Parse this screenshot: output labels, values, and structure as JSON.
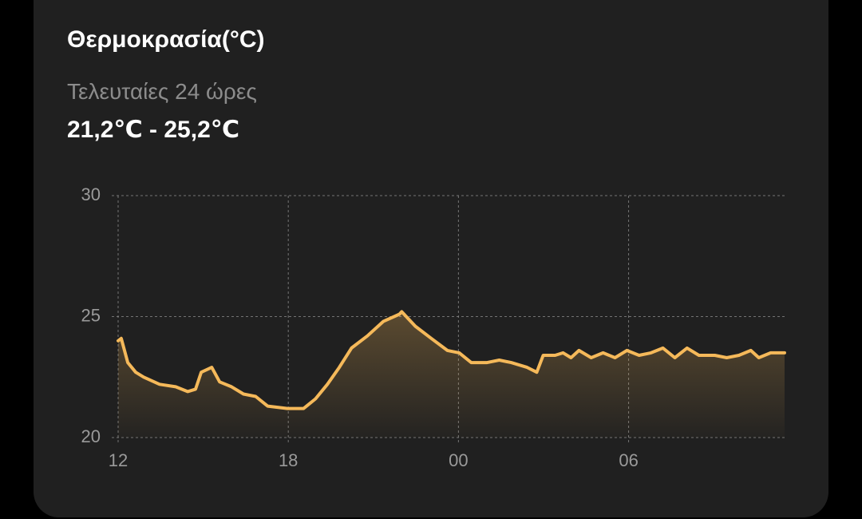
{
  "header": {
    "title": "Θερμοκρασία(°C)",
    "subtitle": "Τελευταίες 24 ώρες",
    "range": "21,2℃ - 25,2℃"
  },
  "chart_data": {
    "type": "area",
    "line_color": "#f5b95a",
    "grid": true,
    "xlim": [
      0,
      23.5
    ],
    "ylim": [
      20,
      30
    ],
    "xticks": [
      {
        "value": 0,
        "label": "12"
      },
      {
        "value": 6,
        "label": "18"
      },
      {
        "value": 12,
        "label": "00"
      },
      {
        "value": 18,
        "label": "06"
      }
    ],
    "yticks": [
      20,
      25,
      30
    ],
    "x": [
      0,
      0.11,
      0.34,
      0.62,
      0.9,
      1.46,
      2.03,
      2.45,
      2.73,
      2.93,
      3.3,
      3.58,
      4.0,
      4.42,
      4.85,
      5.27,
      5.97,
      6.54,
      6.96,
      7.38,
      7.8,
      8.23,
      8.79,
      9.35,
      9.92,
      10.0,
      10.48,
      11.04,
      11.61,
      12.03,
      12.45,
      13.01,
      13.44,
      13.86,
      14.42,
      14.76,
      14.99,
      15.41,
      15.69,
      15.97,
      16.25,
      16.68,
      17.1,
      17.52,
      17.94,
      18.37,
      18.79,
      19.21,
      19.63,
      20.06,
      20.48,
      21.04,
      21.46,
      21.89,
      22.31,
      22.59,
      23.01,
      23.5
    ],
    "values": [
      24.0,
      24.1,
      23.1,
      22.7,
      22.5,
      22.2,
      22.1,
      21.9,
      22.0,
      22.7,
      22.9,
      22.3,
      22.1,
      21.8,
      21.7,
      21.3,
      21.2,
      21.2,
      21.6,
      22.2,
      22.9,
      23.7,
      24.2,
      24.8,
      25.1,
      25.2,
      24.6,
      24.1,
      23.6,
      23.5,
      23.1,
      23.1,
      23.2,
      23.1,
      22.9,
      22.7,
      23.4,
      23.4,
      23.5,
      23.3,
      23.6,
      23.3,
      23.5,
      23.3,
      23.6,
      23.4,
      23.5,
      23.7,
      23.3,
      23.7,
      23.4,
      23.4,
      23.3,
      23.4,
      23.6,
      23.3,
      23.5,
      23.5
    ]
  }
}
